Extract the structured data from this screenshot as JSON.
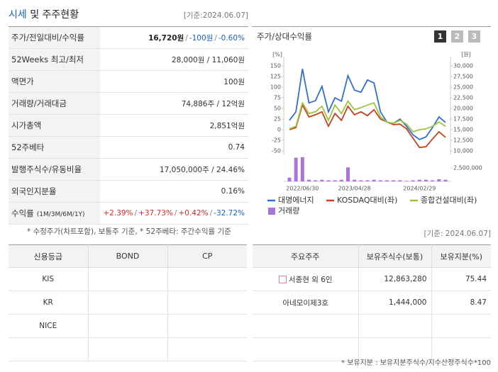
{
  "header": {
    "title_highlight": "시세",
    "title_rest": "및 주주현황",
    "date": "[기준:2024.06.07]"
  },
  "price_table": {
    "rows": [
      {
        "label": "주가/전일대비/수익률",
        "parts": [
          {
            "text": "16,720원",
            "color": "#222222",
            "bold": true
          },
          {
            "text": "/",
            "color": "#888888"
          },
          {
            "text": "-100원",
            "color": "#1a5fc8"
          },
          {
            "text": "/",
            "color": "#888888"
          },
          {
            "text": "-0.60%",
            "color": "#1a5fc8"
          }
        ]
      },
      {
        "label": "52Weeks 최고/최저",
        "parts": [
          {
            "text": "28,000원 / 11,060원",
            "color": "#333333"
          }
        ]
      },
      {
        "label": "액면가",
        "parts": [
          {
            "text": "100원",
            "color": "#333333"
          }
        ]
      },
      {
        "label": "거래량/거래대금",
        "parts": [
          {
            "text": "74,886주 / 12억원",
            "color": "#333333"
          }
        ]
      },
      {
        "label": "시가총액",
        "parts": [
          {
            "text": "2,851억원",
            "color": "#333333"
          }
        ]
      },
      {
        "label": "52주베타",
        "parts": [
          {
            "text": "0.74",
            "color": "#333333"
          }
        ]
      },
      {
        "label": "발행주식수/유동비율",
        "parts": [
          {
            "text": "17,050,000주 / 24.46%",
            "color": "#333333"
          }
        ]
      },
      {
        "label": "외국인지분율",
        "parts": [
          {
            "text": "0.16%",
            "color": "#333333"
          }
        ]
      },
      {
        "label": "수익률",
        "label_note": "(1M/3M/6M/1Y)",
        "parts": [
          {
            "text": "+2.39%",
            "color": "#d42a2a"
          },
          {
            "text": "/",
            "color": "#888888"
          },
          {
            "text": "+37.73%",
            "color": "#d42a2a"
          },
          {
            "text": "/",
            "color": "#888888"
          },
          {
            "text": "+0.42%",
            "color": "#d42a2a"
          },
          {
            "text": "/",
            "color": "#888888"
          },
          {
            "text": "-32.72%",
            "color": "#1a5fc8"
          }
        ]
      }
    ],
    "note": "* 수정주가(차트포함), 보통주 기준, * 52주베타: 주간수익률 기준"
  },
  "chart_data": {
    "type": "line",
    "title": "주가/상대수익률",
    "tabs": [
      "1",
      "2",
      "3"
    ],
    "y_label": "[%]",
    "y2_label": "[원]",
    "categories": [
      null,
      null,
      "2022/06/30",
      null,
      null,
      null,
      null,
      null,
      null,
      null,
      "2023/04/28",
      null,
      null,
      null,
      null,
      null,
      null,
      null,
      null,
      null,
      "2024/02/29",
      null,
      null,
      null,
      null
    ],
    "ylim": [
      -50,
      150
    ],
    "yticks": [
      -50,
      -25,
      0,
      25,
      50,
      75,
      100,
      125,
      150
    ],
    "y2lim": [
      10000,
      30000
    ],
    "y2ticks": [
      {
        "value": 10000,
        "label": "10,000"
      },
      {
        "value": 12500,
        "label": "12,500"
      },
      {
        "value": 15000,
        "label": "15,000"
      },
      {
        "value": 17500,
        "label": "17,500"
      },
      {
        "value": 20000,
        "label": "20,000"
      },
      {
        "value": 22500,
        "label": "22,500"
      },
      {
        "value": 25000,
        "label": "25,000"
      },
      {
        "value": 27500,
        "label": "27,500"
      },
      {
        "value": 30000,
        "label": "30,000"
      }
    ],
    "y3lim": [
      0,
      5000000
    ],
    "y3ticks": [
      {
        "value": 2500000,
        "label": "2,500,000"
      }
    ],
    "series": [
      {
        "name": "대명에너지",
        "color": "#2f6fd4",
        "axis": "y2",
        "values": [
          17200,
          19200,
          29300,
          21300,
          21800,
          25200,
          19200,
          22500,
          21700,
          27700,
          24300,
          23800,
          26700,
          26000,
          19200,
          16800,
          16500,
          17500,
          15800,
          13800,
          12700,
          13300,
          15500,
          18000,
          16700
        ]
      },
      {
        "name": "KOSDAQ대비(좌)",
        "color": "#c8401e",
        "values": [
          0,
          5,
          58,
          30,
          35,
          42,
          8,
          38,
          22,
          55,
          35,
          42,
          33,
          47,
          25,
          18,
          12,
          13,
          2,
          -20,
          -42,
          -40,
          -22,
          -5,
          -18
        ]
      },
      {
        "name": "종합건설대비(좌)",
        "color": "#9cc43c",
        "values": [
          2,
          8,
          63,
          38,
          42,
          55,
          22,
          58,
          38,
          67,
          47,
          52,
          58,
          63,
          30,
          18,
          15,
          22,
          13,
          -5,
          0,
          2,
          8,
          18,
          8
        ]
      },
      {
        "name": "거래량",
        "type": "bar",
        "color": "#a776d8",
        "axis": "y3",
        "values": [
          700000,
          4400000,
          4500000,
          300000,
          200000,
          300000,
          200000,
          200000,
          300000,
          2600000,
          300000,
          200000,
          200000,
          300000,
          200000,
          200000,
          200000,
          200000,
          100000,
          200000,
          300000,
          300000,
          200000,
          400000,
          300000
        ]
      }
    ]
  },
  "credit_table": {
    "columns": [
      "신용등급",
      "BOND",
      "CP"
    ],
    "rows": [
      [
        "KIS"
      ],
      [
        "KR"
      ],
      [
        "NICE"
      ]
    ]
  },
  "holders_table": {
    "date": "[기준: 2024.06.07]",
    "columns": [
      "주요주주",
      "보유주식수(보통)",
      "보유지분(%)"
    ],
    "rows": [
      [
        "서종현 외 6인",
        "12,863,280",
        "75.44"
      ],
      [
        "아네모이제3호",
        "1,444,000",
        "8.47"
      ]
    ],
    "note": "* 보유지분 : 보유지분주식수/지수산정주식수*100"
  }
}
